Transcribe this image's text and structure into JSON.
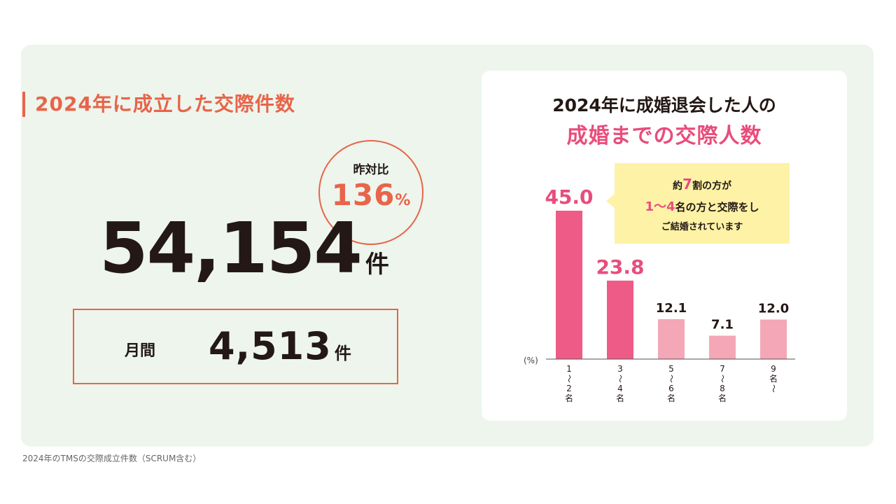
{
  "left": {
    "title": "2024年に成立した交際件数",
    "ratio_label": "昨対比",
    "ratio_value": "136",
    "ratio_unit": "%",
    "total": "54,154",
    "total_unit": "件",
    "monthly_label": "月間",
    "monthly_value": "4,513",
    "monthly_unit": "件"
  },
  "footnote": "2024年のTMSの交際成立件数（SCRUM含む）",
  "chart_title_line1": "2024年に成婚退会した人の",
  "chart_title_line2": "成婚までの交際人数",
  "callout": {
    "l1_pre": "約",
    "l1_hl": "7",
    "l1_post": "割の方が",
    "l2_hl": "1〜4",
    "l2_post": "名の方と交際をし",
    "l3": "ご結婚されています"
  },
  "colors": {
    "accent": "#e8644a",
    "pink": "#e84d7c",
    "pink_dark": "#ee5b86",
    "pink_light": "#f4a7b6",
    "callout_bg": "#fdf2a6",
    "panel_bg": "#edf5ec"
  },
  "chart_data": {
    "type": "bar",
    "title": "2024年に成婚退会した人の 成婚までの交際人数",
    "ylabel": "(%)",
    "categories": [
      "1〜2名",
      "3〜4名",
      "5〜6名",
      "7〜8名",
      "9名〜"
    ],
    "values": [
      45.0,
      23.8,
      12.1,
      7.1,
      12.0
    ],
    "labels": [
      "45.0",
      "23.8",
      "12.1",
      "7.1",
      "12.0"
    ],
    "highlight": [
      true,
      true,
      false,
      false,
      false
    ],
    "ylim": [
      0,
      50
    ]
  }
}
